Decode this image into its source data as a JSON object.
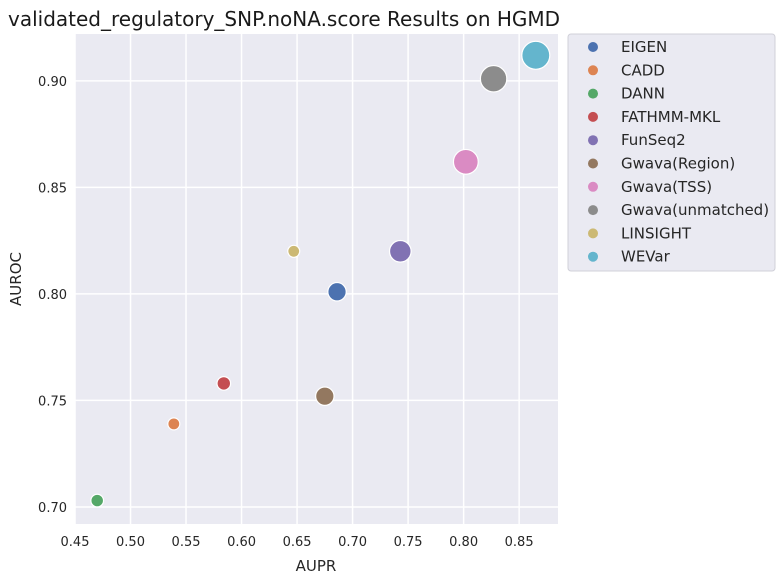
{
  "chart_data": {
    "type": "scatter",
    "title": "validated_regulatory_SNP.noNA.score Results on HGMD",
    "xlabel": "AUPR",
    "ylabel": "AUROC",
    "xlim": [
      0.45,
      0.885
    ],
    "ylim": [
      0.692,
      0.922
    ],
    "xticks": [
      "0.45",
      "0.50",
      "0.55",
      "0.60",
      "0.65",
      "0.70",
      "0.75",
      "0.80",
      "0.85"
    ],
    "yticks": [
      "0.70",
      "0.75",
      "0.80",
      "0.85",
      "0.90"
    ],
    "grid": true,
    "legend_position": "outside-right",
    "series": [
      {
        "name": "EIGEN",
        "color": "#4c72b0",
        "x": 0.686,
        "y": 0.801,
        "size": 3
      },
      {
        "name": "CADD",
        "color": "#dd8452",
        "x": 0.539,
        "y": 0.739,
        "size": 1
      },
      {
        "name": "DANN",
        "color": "#55a868",
        "x": 0.47,
        "y": 0.703,
        "size": 1.2
      },
      {
        "name": "FATHMM-MKL",
        "color": "#c44e52",
        "x": 0.584,
        "y": 0.758,
        "size": 1.5
      },
      {
        "name": "FunSeq2",
        "color": "#8172b3",
        "x": 0.743,
        "y": 0.82,
        "size": 4
      },
      {
        "name": "Gwava(Region)",
        "color": "#937860",
        "x": 0.675,
        "y": 0.752,
        "size": 3
      },
      {
        "name": "Gwava(TSS)",
        "color": "#da8bc3",
        "x": 0.802,
        "y": 0.862,
        "size": 5
      },
      {
        "name": "Gwava(unmatched)",
        "color": "#8c8c8c",
        "x": 0.827,
        "y": 0.901,
        "size": 5.5
      },
      {
        "name": "LINSIGHT",
        "color": "#ccb974",
        "x": 0.647,
        "y": 0.82,
        "size": 1
      },
      {
        "name": "WEVar",
        "color": "#64b5cd",
        "x": 0.865,
        "y": 0.912,
        "size": 6
      }
    ]
  }
}
